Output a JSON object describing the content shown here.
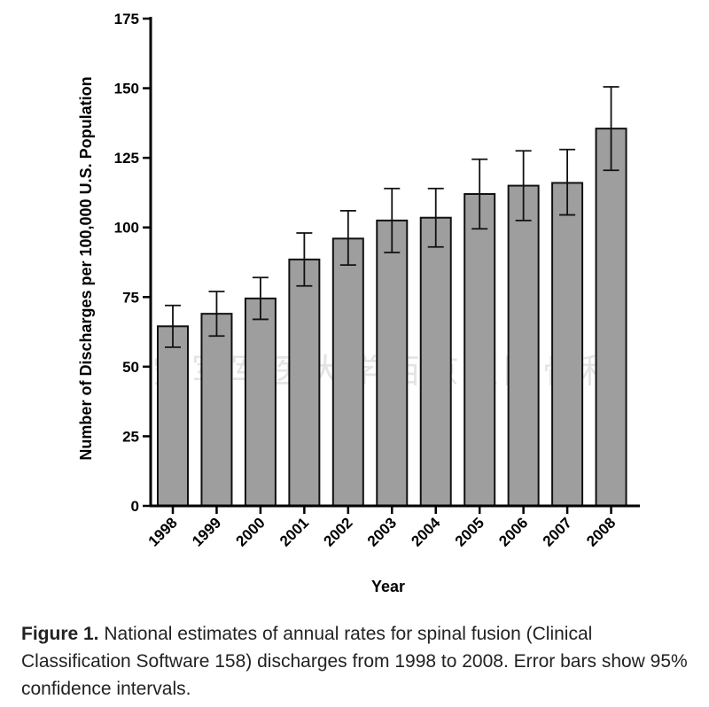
{
  "chart_data": {
    "type": "bar",
    "title": "",
    "xlabel": "Year",
    "ylabel": "Number of Discharges per 100,000 U.S.  Population",
    "ylim": [
      0,
      175
    ],
    "yticks": [
      0,
      25,
      50,
      75,
      100,
      125,
      150,
      175
    ],
    "categories": [
      "1998",
      "1999",
      "2000",
      "2001",
      "2002",
      "2003",
      "2004",
      "2005",
      "2006",
      "2007",
      "2008"
    ],
    "values": [
      64.5,
      69,
      74.5,
      88.5,
      96,
      102.5,
      103.5,
      112,
      115,
      116,
      135.5
    ],
    "error_low": [
      57,
      61,
      67,
      79,
      86.5,
      91,
      93,
      99.5,
      102.5,
      104.5,
      120.5
    ],
    "error_high": [
      72,
      77,
      82,
      98,
      106,
      114,
      114,
      124.5,
      127.5,
      128,
      150.5
    ]
  },
  "watermark": "空军军医大学西京医院骨科",
  "caption": {
    "label": "Figure 1.",
    "text": " National estimates of annual rates for spinal fusion (Clinical Classification Software 158) discharges from 1998 to 2008. Error bars show 95% confidence intervals."
  }
}
